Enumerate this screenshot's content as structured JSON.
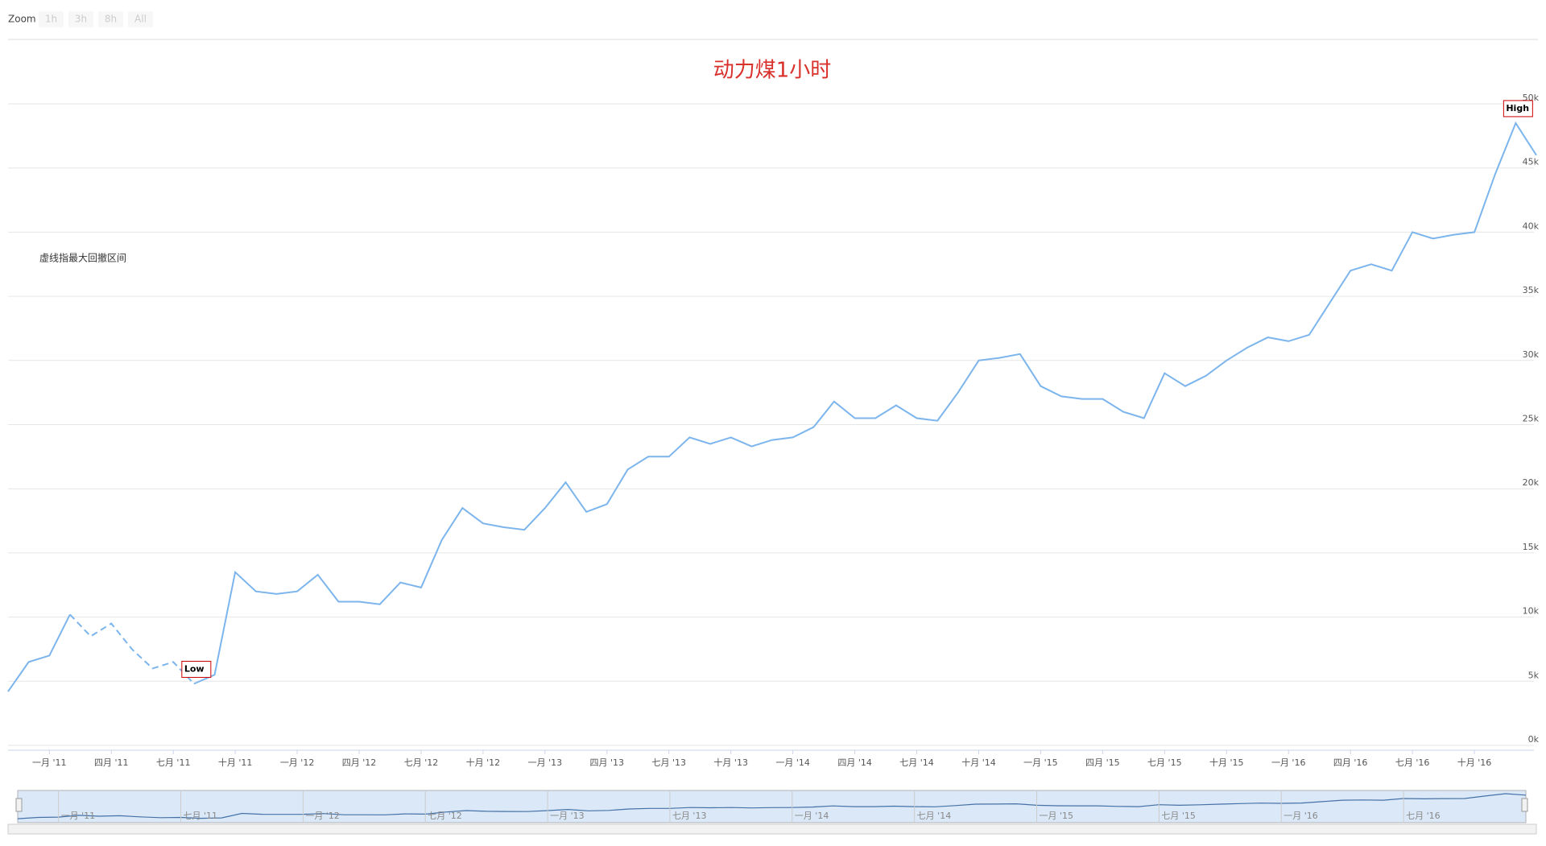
{
  "zoom": {
    "label": "Zoom",
    "buttons": [
      "1h",
      "3h",
      "8h",
      "All"
    ]
  },
  "chart_data": {
    "type": "line",
    "title": "动力煤1小时",
    "annotation": "虚线指最大回撤区间",
    "x": [
      "2010-11",
      "2010-12",
      "2011-01",
      "2011-02",
      "2011-03",
      "2011-04",
      "2011-05",
      "2011-06",
      "2011-07",
      "2011-08",
      "2011-09",
      "2011-10",
      "2011-11",
      "2011-12",
      "2012-01",
      "2012-02",
      "2012-03",
      "2012-04",
      "2012-05",
      "2012-06",
      "2012-07",
      "2012-08",
      "2012-09",
      "2012-10",
      "2012-11",
      "2012-12",
      "2013-01",
      "2013-02",
      "2013-03",
      "2013-04",
      "2013-05",
      "2013-06",
      "2013-07",
      "2013-08",
      "2013-09",
      "2013-10",
      "2013-11",
      "2013-12",
      "2014-01",
      "2014-02",
      "2014-03",
      "2014-04",
      "2014-05",
      "2014-06",
      "2014-07",
      "2014-08",
      "2014-09",
      "2014-10",
      "2014-11",
      "2014-12",
      "2015-01",
      "2015-02",
      "2015-03",
      "2015-04",
      "2015-05",
      "2015-06",
      "2015-07",
      "2015-08",
      "2015-09",
      "2015-10",
      "2015-11",
      "2015-12",
      "2016-01",
      "2016-02",
      "2016-03",
      "2016-04",
      "2016-05",
      "2016-06",
      "2016-07",
      "2016-08",
      "2016-09",
      "2016-10",
      "2016-11",
      "2016-12",
      "2017-01"
    ],
    "series": [
      {
        "color": "#7cb5ec",
        "values": [
          4200,
          6500,
          7000,
          10200,
          8500,
          9500,
          7500,
          6000,
          6500,
          4800,
          5500,
          13500,
          12000,
          11800,
          12000,
          13300,
          11200,
          11200,
          11000,
          12700,
          12300,
          16000,
          18500,
          17300,
          17000,
          16800,
          18500,
          20500,
          18200,
          18800,
          21500,
          22500,
          22500,
          24000,
          23500,
          24000,
          23300,
          23800,
          24000,
          24800,
          26800,
          25500,
          25500,
          26500,
          25500,
          25300,
          27500,
          30000,
          30200,
          30500,
          28000,
          27200,
          27000,
          27000,
          26000,
          25500,
          29000,
          28000,
          28800,
          30000,
          31000,
          31800,
          31500,
          32000,
          34500,
          37000,
          37500,
          37000,
          40000,
          39500,
          39800,
          40000,
          44500,
          48500,
          46000
        ]
      }
    ],
    "dash_range": [
      "2011-03",
      "2011-08"
    ],
    "flags": [
      {
        "text": "Low",
        "x": "2011-08"
      },
      {
        "text": "High",
        "x": "2016-12"
      }
    ],
    "xlim": [
      "2010-11",
      "2017-01"
    ],
    "xticks": [
      {
        "value": "2011-01",
        "label": "一月 '11"
      },
      {
        "value": "2011-04",
        "label": "四月 '11"
      },
      {
        "value": "2011-07",
        "label": "七月 '11"
      },
      {
        "value": "2011-10",
        "label": "十月 '11"
      },
      {
        "value": "2012-01",
        "label": "一月 '12"
      },
      {
        "value": "2012-04",
        "label": "四月 '12"
      },
      {
        "value": "2012-07",
        "label": "七月 '12"
      },
      {
        "value": "2012-10",
        "label": "十月 '12"
      },
      {
        "value": "2013-01",
        "label": "一月 '13"
      },
      {
        "value": "2013-04",
        "label": "四月 '13"
      },
      {
        "value": "2013-07",
        "label": "七月 '13"
      },
      {
        "value": "2013-10",
        "label": "十月 '13"
      },
      {
        "value": "2014-01",
        "label": "一月 '14"
      },
      {
        "value": "2014-04",
        "label": "四月 '14"
      },
      {
        "value": "2014-07",
        "label": "七月 '14"
      },
      {
        "value": "2014-10",
        "label": "十月 '14"
      },
      {
        "value": "2015-01",
        "label": "一月 '15"
      },
      {
        "value": "2015-04",
        "label": "四月 '15"
      },
      {
        "value": "2015-07",
        "label": "七月 '15"
      },
      {
        "value": "2015-10",
        "label": "十月 '15"
      },
      {
        "value": "2016-01",
        "label": "一月 '16"
      },
      {
        "value": "2016-04",
        "label": "四月 '16"
      },
      {
        "value": "2016-07",
        "label": "七月 '16"
      },
      {
        "value": "2016-10",
        "label": "十月 '16"
      }
    ],
    "ylim": [
      0,
      50000
    ],
    "yticks": [
      {
        "value": 0,
        "label": "0k"
      },
      {
        "value": 5000,
        "label": "5k"
      },
      {
        "value": 10000,
        "label": "10k"
      },
      {
        "value": 15000,
        "label": "15k"
      },
      {
        "value": 20000,
        "label": "20k"
      },
      {
        "value": 25000,
        "label": "25k"
      },
      {
        "value": 30000,
        "label": "30k"
      },
      {
        "value": 35000,
        "label": "35k"
      },
      {
        "value": 40000,
        "label": "40k"
      },
      {
        "value": 45000,
        "label": "45k"
      },
      {
        "value": 50000,
        "label": "50k"
      }
    ],
    "grid": true,
    "navigator_ticks": [
      {
        "value": "2011-01",
        "label": "一月 '11"
      },
      {
        "value": "2011-07",
        "label": "七月 '11"
      },
      {
        "value": "2012-01",
        "label": "一月 '12"
      },
      {
        "value": "2012-07",
        "label": "七月 '12"
      },
      {
        "value": "2013-01",
        "label": "一月 '13"
      },
      {
        "value": "2013-07",
        "label": "七月 '13"
      },
      {
        "value": "2014-01",
        "label": "一月 '14"
      },
      {
        "value": "2014-07",
        "label": "七月 '14"
      },
      {
        "value": "2015-01",
        "label": "一月 '15"
      },
      {
        "value": "2015-07",
        "label": "七月 '15"
      },
      {
        "value": "2016-01",
        "label": "一月 '16"
      },
      {
        "value": "2016-07",
        "label": "七月 '16"
      }
    ]
  }
}
